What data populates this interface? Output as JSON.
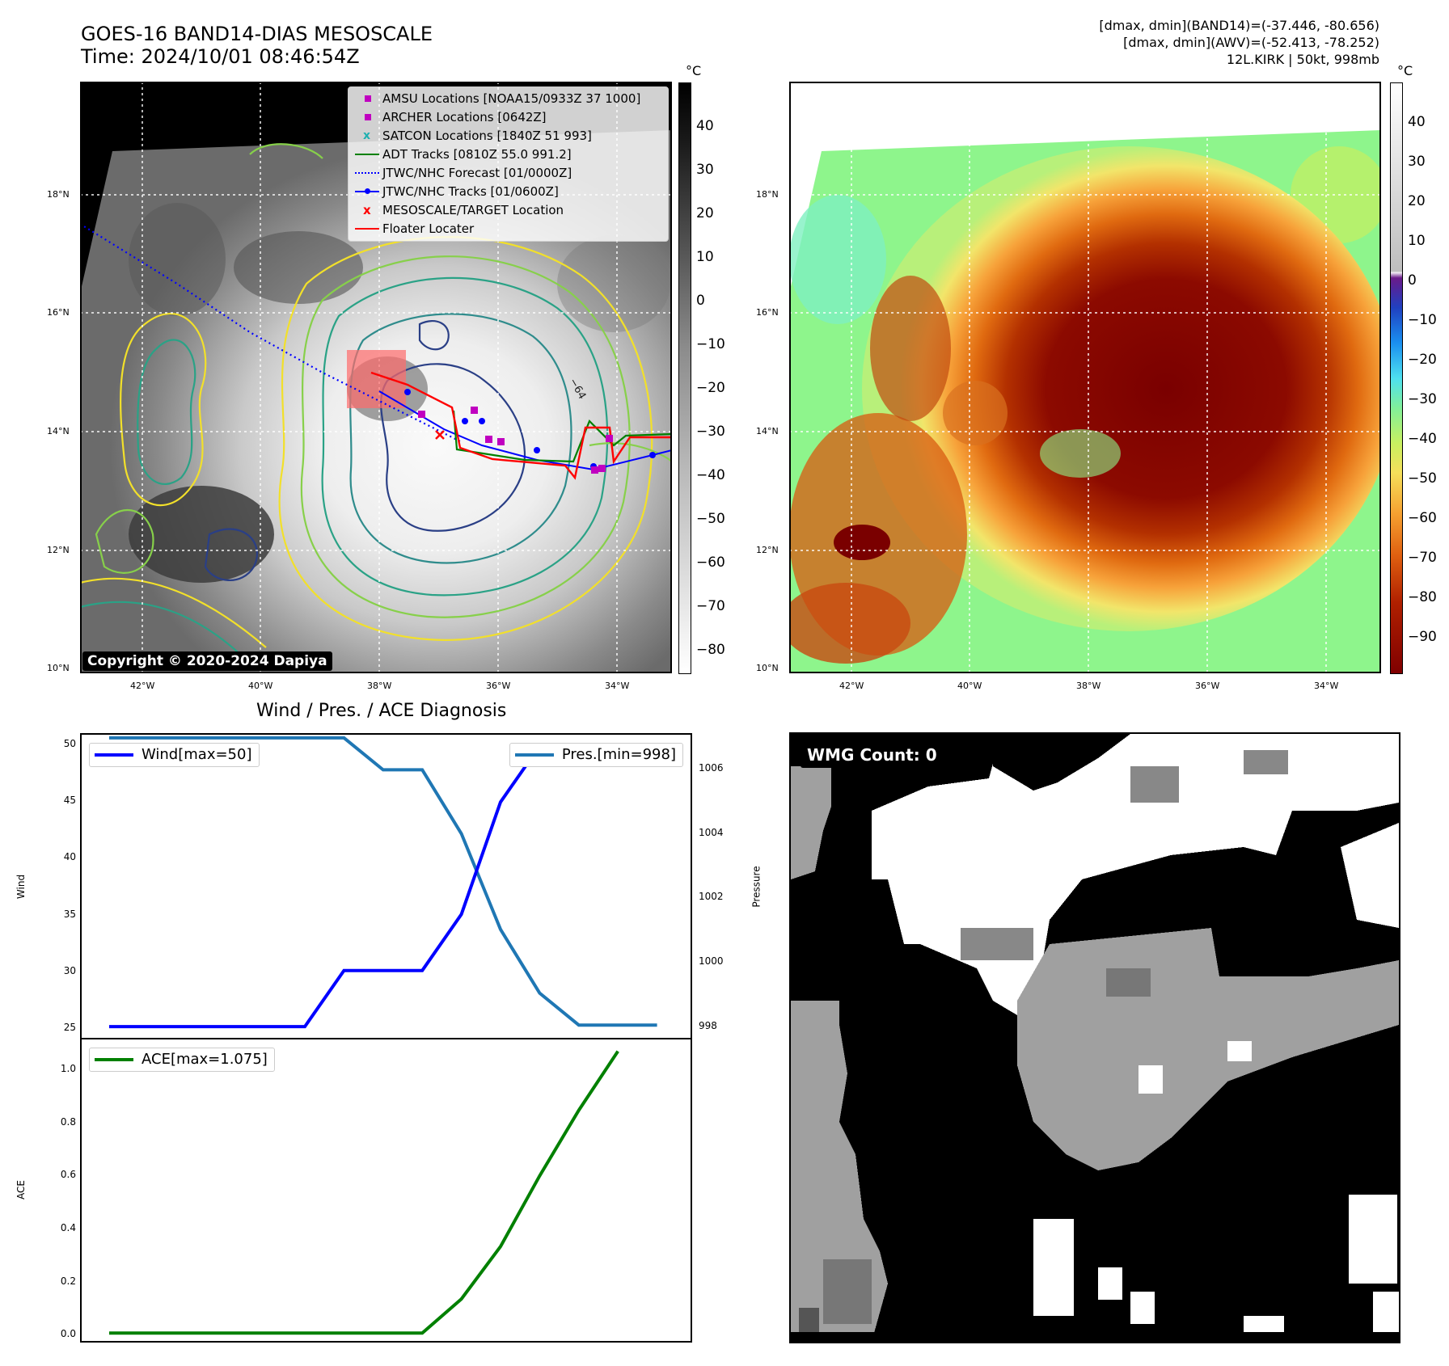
{
  "header": {
    "title_line1": "GOES-16 BAND14-DIAS MESOSCALE",
    "title_line2": "Time: 2024/10/01 08:46:54Z",
    "info_line1": "[dmax, dmin](BAND14)=(-37.446, -80.656)",
    "info_line2": "[dmax, dmin](AWV)=(-52.413, -78.252)",
    "info_line3": "12L.KIRK | 50kt, 998mb"
  },
  "map": {
    "lat_labels": [
      "18°N",
      "16°N",
      "14°N",
      "12°N",
      "10°N"
    ],
    "lon_labels": [
      "42°W",
      "40°W",
      "38°W",
      "36°W",
      "34°W"
    ],
    "copyright": "Copyright © 2020-2024 Dapiya",
    "contour_label": "-64"
  },
  "legend": {
    "items": [
      {
        "label": "AMSU Locations [NOAA15/0933Z 37 1000]",
        "symbol": "square",
        "color": "#c000c0"
      },
      {
        "label": "ARCHER Locations [0642Z]",
        "symbol": "square",
        "color": "#c000c0"
      },
      {
        "label": "SATCON Locations [1840Z 51 993]",
        "symbol": "x",
        "color": "#20b0b0"
      },
      {
        "label": "ADT Tracks [0810Z 55.0 991.2]",
        "symbol": "line",
        "color": "#008000"
      },
      {
        "label": "JTWC/NHC Forecast [01/0000Z]",
        "symbol": "dotted",
        "color": "#0000ff"
      },
      {
        "label": "JTWC/NHC Tracks [01/0600Z]",
        "symbol": "line-dot",
        "color": "#0000ff"
      },
      {
        "label": "MESOSCALE/TARGET Location",
        "symbol": "x",
        "color": "#ff0000"
      },
      {
        "label": "Floater Locater",
        "symbol": "line",
        "color": "#ff0000"
      }
    ]
  },
  "colorbar_gray": {
    "unit": "°C",
    "ticks": [
      "40",
      "30",
      "20",
      "10",
      "0",
      "−10",
      "−20",
      "−30",
      "−40",
      "−50",
      "−60",
      "−70",
      "−80"
    ]
  },
  "colorbar_color": {
    "unit": "°C",
    "ticks": [
      "40",
      "30",
      "20",
      "10",
      "0",
      "−10",
      "−20",
      "−30",
      "−40",
      "−50",
      "−60",
      "−70",
      "−80",
      "−90"
    ]
  },
  "wmg": {
    "label": "WMG Count: 0"
  },
  "colors": {
    "wind": "#0000ff",
    "pressure": "#1f77b4",
    "ace": "#008000"
  },
  "chart_data": [
    {
      "type": "line",
      "title": "Wind / Pres. / ACE Diagnosis",
      "ylabel": "Wind",
      "ylabel_right": "Pressure",
      "ylim": [
        24,
        51
      ],
      "y_ticks": [
        25,
        30,
        35,
        40,
        45,
        50
      ],
      "ylim_right": [
        997.6,
        1007.1
      ],
      "y_ticks_right": [
        998,
        1000,
        1002,
        1004,
        1006
      ],
      "series": [
        {
          "name": "Wind[max=50]",
          "axis": "left",
          "values": [
            25,
            25,
            25,
            25,
            25,
            25,
            30,
            30,
            30,
            35,
            45,
            50,
            50,
            50,
            50
          ]
        },
        {
          "name": "Pres.[min=998]",
          "axis": "right",
          "values": [
            1007,
            1007,
            1007,
            1007,
            1007,
            1007,
            1007,
            1006,
            1006,
            1004,
            1001,
            999,
            998,
            998,
            998
          ]
        }
      ]
    },
    {
      "type": "line",
      "ylabel": "ACE",
      "ylim": [
        -0.03,
        1.12
      ],
      "y_ticks": [
        0.0,
        0.2,
        0.4,
        0.6,
        0.8,
        1.0
      ],
      "y_tick_labels": [
        "0.0",
        "0.2",
        "0.4",
        "0.6",
        "0.8",
        "1.0"
      ],
      "series": [
        {
          "name": "ACE[max=1.075]",
          "values": [
            0,
            0,
            0,
            0,
            0,
            0,
            0,
            0,
            0,
            0.13,
            0.33,
            0.6,
            0.85,
            1.075
          ]
        }
      ]
    }
  ]
}
